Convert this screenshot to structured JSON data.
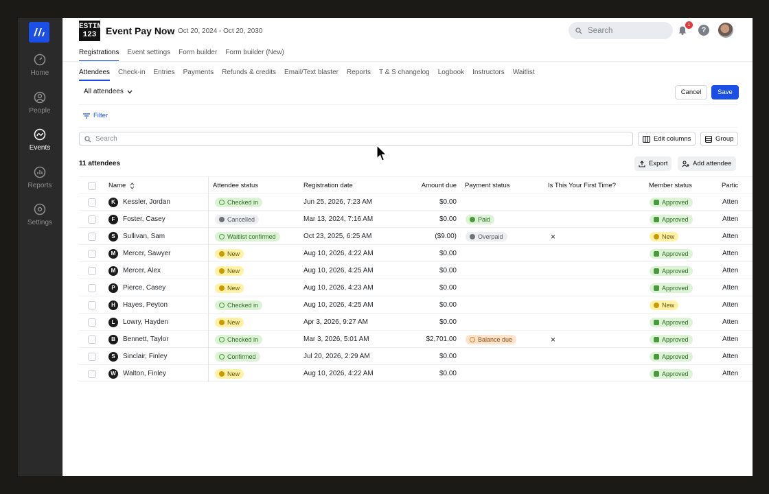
{
  "sidebar": {
    "items": [
      {
        "label": "Home",
        "icon": "gauge-icon"
      },
      {
        "label": "People",
        "icon": "person-icon"
      },
      {
        "label": "Events",
        "icon": "events-icon"
      },
      {
        "label": "Reports",
        "icon": "bar-chart-icon"
      },
      {
        "label": "Settings",
        "icon": "gear-icon"
      }
    ],
    "active": "Events"
  },
  "header": {
    "brand_text": "ESTIN 123",
    "title": "Event Pay Now",
    "dates": "Oct 20, 2024 - Oct 20, 2030",
    "search_placeholder": "Search",
    "notification_count": "1",
    "help_glyph": "?"
  },
  "tabs_primary": [
    "Registrations",
    "Event settings",
    "Form builder",
    "Form builder (New)"
  ],
  "tabs_secondary": [
    "Attendees",
    "Check-in",
    "Entries",
    "Payments",
    "Refunds & credits",
    "Email/Text blaster",
    "Reports",
    "T & S changelog",
    "Logbook",
    "Instructors",
    "Waitlist"
  ],
  "toolbar": {
    "view": "All attendees",
    "cancel_label": "Cancel",
    "save_label": "Save",
    "filter_label": "Filter",
    "search_placeholder": "Search",
    "edit_columns_label": "Edit columns",
    "group_label": "Group",
    "export_label": "Export",
    "add_attendee_label": "Add attendee",
    "count": "11 attendees"
  },
  "table": {
    "headers": {
      "name": "Name",
      "attendee_status": "Attendee status",
      "registration_date": "Registration date",
      "amount_due": "Amount due",
      "payment_status": "Payment status",
      "first_time": "Is This Your First Time?",
      "member_status": "Member status",
      "participant": "Partic"
    },
    "rows": [
      {
        "initial": "K",
        "name": "Kessler, Jordan",
        "status": "Checked in",
        "date": "Jun 25, 2026, 7:23 AM",
        "amount": "$0.00",
        "payment": "",
        "first": "",
        "member": "Approved",
        "part": "Atten"
      },
      {
        "initial": "F",
        "name": "Foster, Casey",
        "status": "Cancelled",
        "date": "Mar 13, 2024, 7:16 AM",
        "amount": "$0.00",
        "payment": "Paid",
        "first": "",
        "member": "Approved",
        "part": "Atten"
      },
      {
        "initial": "S",
        "name": "Sullivan, Sam",
        "status": "Waitlist confirmed",
        "date": "Oct 23, 2025, 6:25 AM",
        "amount": "($9.00)",
        "payment": "Overpaid",
        "first": "×",
        "member": "New",
        "part": "Atten"
      },
      {
        "initial": "M",
        "name": "Mercer, Sawyer",
        "status": "New",
        "date": "Aug 10, 2026, 4:22 AM",
        "amount": "$0.00",
        "payment": "",
        "first": "",
        "member": "Approved",
        "part": "Atten"
      },
      {
        "initial": "M",
        "name": "Mercer, Alex",
        "status": "New",
        "date": "Aug 10, 2026, 4:25 AM",
        "amount": "$0.00",
        "payment": "",
        "first": "",
        "member": "Approved",
        "part": "Atten"
      },
      {
        "initial": "P",
        "name": "Pierce, Casey",
        "status": "New",
        "date": "Aug 10, 2026, 4:23 AM",
        "amount": "$0.00",
        "payment": "",
        "first": "",
        "member": "Approved",
        "part": "Atten"
      },
      {
        "initial": "H",
        "name": "Hayes, Peyton",
        "status": "Checked in",
        "date": "Aug 10, 2026, 4:25 AM",
        "amount": "$0.00",
        "payment": "",
        "first": "",
        "member": "New",
        "part": "Atten"
      },
      {
        "initial": "L",
        "name": "Lowry, Hayden",
        "status": "New",
        "date": "Apr 3, 2026, 9:27 AM",
        "amount": "$0.00",
        "payment": "",
        "first": "",
        "member": "Approved",
        "part": "Atten"
      },
      {
        "initial": "B",
        "name": "Bennett, Taylor",
        "status": "Checked in",
        "date": "Mar 3, 2026, 5:01 AM",
        "amount": "$2,701.00",
        "payment": "Balance due",
        "first": "×",
        "member": "Approved",
        "part": "Atten"
      },
      {
        "initial": "S",
        "name": "Sinclair, Finley",
        "status": "Confirmed",
        "date": "Jul 20, 2026, 2:29 AM",
        "amount": "$0.00",
        "payment": "",
        "first": "",
        "member": "Approved",
        "part": "Atten"
      },
      {
        "initial": "W",
        "name": "Walton, Finley",
        "status": "New",
        "date": "Aug 10, 2026, 4:22 AM",
        "amount": "$0.00",
        "payment": "",
        "first": "",
        "member": "Approved",
        "part": "Atten"
      }
    ]
  },
  "colors": {
    "accent": "#1c4fe6",
    "green_bg": "#dcf3d5",
    "green_fg": "#2f6b27",
    "green_dot": "#4a9a3d",
    "yellow_bg": "#fff2a8",
    "yellow_fg": "#6b5400",
    "yellow_dot": "#c99a00",
    "gray_bg": "#eceef1",
    "gray_fg": "#555a61",
    "gray_dot": "#6e737a",
    "orange_bg": "#ffe3cc",
    "orange_fg": "#8a4a10",
    "orange_dot": "#e07a1f"
  }
}
